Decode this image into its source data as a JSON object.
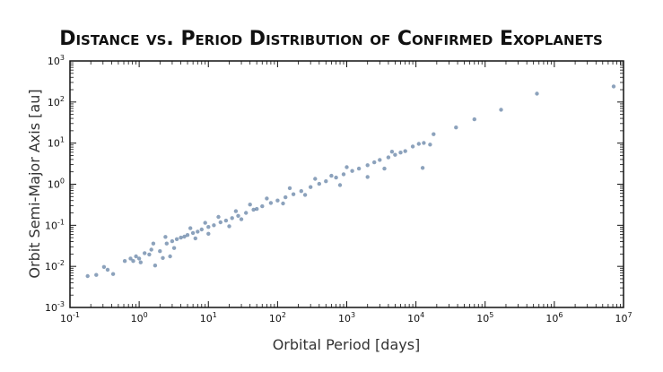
{
  "chart_data": {
    "type": "scatter",
    "title": "Distance vs. Period Distribution of Confirmed Exoplanets",
    "xlabel": "Orbital Period [days]",
    "ylabel": "Orbit Semi-Major Axis [au]",
    "xscale": "log",
    "yscale": "log",
    "xlim": [
      0.1,
      10000000
    ],
    "ylim": [
      0.001,
      1000
    ],
    "grid": false,
    "xticks": [
      {
        "base": "10",
        "exp": "-1",
        "value": 0.1
      },
      {
        "base": "10",
        "exp": "0",
        "value": 1
      },
      {
        "base": "10",
        "exp": "1",
        "value": 10
      },
      {
        "base": "10",
        "exp": "2",
        "value": 100
      },
      {
        "base": "10",
        "exp": "3",
        "value": 1000
      },
      {
        "base": "10",
        "exp": "4",
        "value": 10000
      },
      {
        "base": "10",
        "exp": "5",
        "value": 100000
      },
      {
        "base": "10",
        "exp": "6",
        "value": 1000000
      },
      {
        "base": "10",
        "exp": "7",
        "value": 10000000
      }
    ],
    "yticks": [
      {
        "base": "10",
        "exp": "-3",
        "value": 0.001
      },
      {
        "base": "10",
        "exp": "-2",
        "value": 0.01
      },
      {
        "base": "10",
        "exp": "-1",
        "value": 0.1
      },
      {
        "base": "10",
        "exp": "0",
        "value": 1
      },
      {
        "base": "10",
        "exp": "1",
        "value": 10
      },
      {
        "base": "10",
        "exp": "2",
        "value": 100
      },
      {
        "base": "10",
        "exp": "3",
        "value": 1000
      }
    ],
    "marker_color": "#2e5585",
    "points": [
      [
        0.18,
        0.0058
      ],
      [
        0.24,
        0.0062
      ],
      [
        0.31,
        0.0097
      ],
      [
        0.35,
        0.0083
      ],
      [
        0.42,
        0.0065
      ],
      [
        0.62,
        0.0135
      ],
      [
        0.75,
        0.0155
      ],
      [
        0.82,
        0.0135
      ],
      [
        0.9,
        0.0175
      ],
      [
        1.05,
        0.0125
      ],
      [
        1.2,
        0.021
      ],
      [
        1.5,
        0.0255
      ],
      [
        1.7,
        0.0105
      ],
      [
        2.0,
        0.0235
      ],
      [
        2.2,
        0.016
      ],
      [
        2.5,
        0.036
      ],
      [
        2.8,
        0.0175
      ],
      [
        3.0,
        0.041
      ],
      [
        3.5,
        0.046
      ],
      [
        4.0,
        0.05
      ],
      [
        4.5,
        0.053
      ],
      [
        5.0,
        0.058
      ],
      [
        6.0,
        0.065
      ],
      [
        7.0,
        0.07
      ],
      [
        8.0,
        0.079
      ],
      [
        10.0,
        0.091
      ],
      [
        12.0,
        0.1
      ],
      [
        15.0,
        0.118
      ],
      [
        18.0,
        0.13
      ],
      [
        22.0,
        0.15
      ],
      [
        27.0,
        0.17
      ],
      [
        35.0,
        0.2
      ],
      [
        45.0,
        0.24
      ],
      [
        60.0,
        0.29
      ],
      [
        80.0,
        0.35
      ],
      [
        100.0,
        0.4
      ],
      [
        130.0,
        0.48
      ],
      [
        170.0,
        0.57
      ],
      [
        220.0,
        0.68
      ],
      [
        300.0,
        0.85
      ],
      [
        400.0,
        1.02
      ],
      [
        500.0,
        1.18
      ],
      [
        700.0,
        1.45
      ],
      [
        900.0,
        1.75
      ],
      [
        1200.0,
        2.1
      ],
      [
        1500.0,
        2.4
      ],
      [
        2000.0,
        2.9
      ],
      [
        2500.0,
        3.4
      ],
      [
        3000.0,
        3.9
      ],
      [
        4000.0,
        4.5
      ],
      [
        5000.0,
        5.2
      ],
      [
        6000.0,
        5.9
      ],
      [
        7000.0,
        6.4
      ],
      [
        9000.0,
        8.3
      ],
      [
        11000.0,
        9.6
      ],
      [
        13000.0,
        10.1
      ],
      [
        16000.0,
        9.2
      ],
      [
        18000.0,
        16.5
      ],
      [
        12500.0,
        2.5
      ],
      [
        1.0,
        0.0155
      ],
      [
        1.4,
        0.0195
      ],
      [
        3.2,
        0.028
      ],
      [
        6.5,
        0.048
      ],
      [
        10.0,
        0.062
      ],
      [
        20.0,
        0.095
      ],
      [
        30.0,
        0.14
      ],
      [
        50.0,
        0.25
      ],
      [
        120.0,
        0.34
      ],
      [
        250.0,
        0.55
      ],
      [
        600.0,
        1.6
      ],
      [
        800.0,
        0.95
      ],
      [
        2000.0,
        1.5
      ],
      [
        3500.0,
        2.4
      ],
      [
        1.6,
        0.036
      ],
      [
        2.4,
        0.052
      ],
      [
        5.5,
        0.085
      ],
      [
        9.0,
        0.115
      ],
      [
        14.0,
        0.16
      ],
      [
        25.0,
        0.22
      ],
      [
        40.0,
        0.32
      ],
      [
        70.0,
        0.45
      ],
      [
        150.0,
        0.8
      ],
      [
        350.0,
        1.35
      ],
      [
        1000.0,
        2.6
      ],
      [
        4500.0,
        6.2
      ],
      [
        38000.0,
        24
      ],
      [
        70000.0,
        38
      ],
      [
        170000.0,
        65
      ],
      [
        560000.0,
        160
      ],
      [
        7200000.0,
        240
      ]
    ]
  }
}
